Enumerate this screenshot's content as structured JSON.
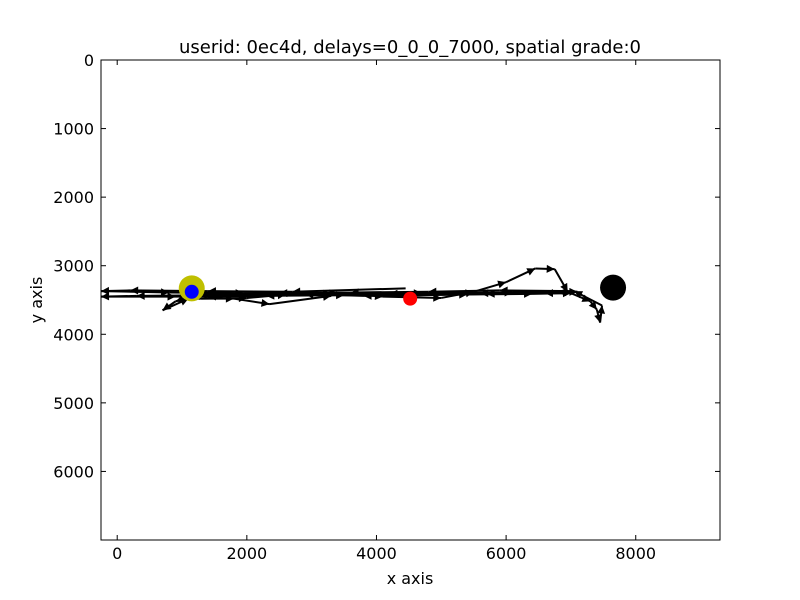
{
  "chart_data": {
    "type": "scatter",
    "title": "userid: 0ec4d, delays=0_0_0_7000, spatial grade:0",
    "xlabel": "x axis",
    "ylabel": "y axis",
    "xlim": [
      -250,
      9300
    ],
    "ylim": [
      0,
      7000
    ],
    "y_inverted": true,
    "x_ticks": [
      0,
      2000,
      4000,
      6000,
      8000
    ],
    "y_ticks": [
      0,
      1000,
      2000,
      3000,
      4000,
      5000,
      6000
    ],
    "grid": false,
    "path_color": "#000000",
    "path": [
      [
        4450,
        3330
      ],
      [
        2700,
        3380
      ],
      [
        1400,
        3370
      ],
      [
        200,
        3360
      ],
      [
        -250,
        3370
      ],
      [
        800,
        3390
      ],
      [
        1950,
        3400
      ],
      [
        3300,
        3410
      ],
      [
        4700,
        3400
      ],
      [
        6100,
        3390
      ],
      [
        7100,
        3380
      ],
      [
        6800,
        3390
      ],
      [
        5600,
        3400
      ],
      [
        4200,
        3410
      ],
      [
        2900,
        3420
      ],
      [
        1500,
        3430
      ],
      [
        300,
        3440
      ],
      [
        -250,
        3450
      ],
      [
        900,
        3450
      ],
      [
        2000,
        3440
      ],
      [
        3500,
        3430
      ],
      [
        4600,
        3430
      ],
      [
        5400,
        3420
      ],
      [
        6400,
        3410
      ],
      [
        7000,
        3400
      ],
      [
        6600,
        3400
      ],
      [
        5700,
        3410
      ],
      [
        4500,
        3430
      ],
      [
        3800,
        3440
      ],
      [
        3100,
        3420
      ],
      [
        2300,
        3440
      ],
      [
        1400,
        3450
      ],
      [
        1150,
        3430
      ],
      [
        1200,
        3460
      ],
      [
        1300,
        3480
      ],
      [
        2000,
        3470
      ],
      [
        2600,
        3420
      ],
      [
        3400,
        3400
      ],
      [
        4100,
        3450
      ],
      [
        5000,
        3470
      ],
      [
        5500,
        3380
      ],
      [
        6000,
        3240
      ],
      [
        6450,
        3040
      ],
      [
        6750,
        3050
      ],
      [
        6950,
        3380
      ],
      [
        7300,
        3520
      ],
      [
        7400,
        3640
      ],
      [
        7450,
        3830
      ],
      [
        7480,
        3580
      ],
      [
        7050,
        3370
      ],
      [
        5900,
        3360
      ],
      [
        4800,
        3380
      ],
      [
        3600,
        3390
      ],
      [
        2500,
        3400
      ],
      [
        1250,
        3420
      ],
      [
        900,
        3520
      ],
      [
        700,
        3650
      ],
      [
        1100,
        3480
      ],
      [
        1800,
        3480
      ],
      [
        2350,
        3560
      ],
      [
        3300,
        3440
      ]
    ],
    "markers": [
      {
        "x": 1150,
        "y": 3330,
        "color": "#bfbf00",
        "size": "large"
      },
      {
        "x": 1150,
        "y": 3380,
        "color": "#0000ff",
        "size": "small"
      },
      {
        "x": 4520,
        "y": 3480,
        "color": "#ff0000",
        "size": "small"
      },
      {
        "x": 7650,
        "y": 3320,
        "color": "#000000",
        "size": "large"
      }
    ]
  }
}
